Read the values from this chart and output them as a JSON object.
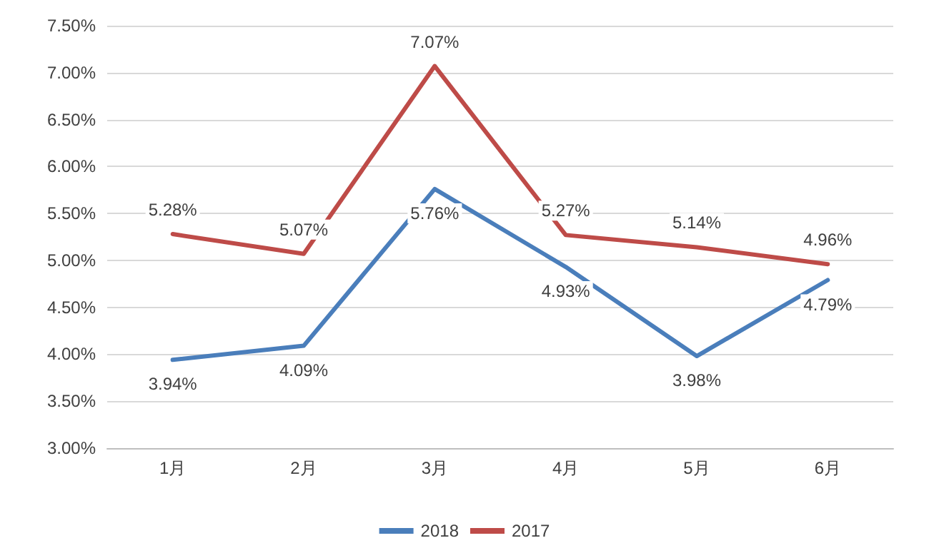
{
  "chart_data": {
    "type": "line",
    "categories": [
      "1月",
      "2月",
      "3月",
      "4月",
      "5月",
      "6月"
    ],
    "series": [
      {
        "name": "2018",
        "color": "#4a7ebb",
        "values": [
          3.94,
          4.09,
          5.76,
          4.93,
          3.98,
          4.79
        ],
        "value_labels": [
          "3.94%",
          "4.09%",
          "5.76%",
          "4.93%",
          "3.98%",
          "4.79%"
        ]
      },
      {
        "name": "2017",
        "color": "#be4b48",
        "values": [
          5.28,
          5.07,
          7.07,
          5.27,
          5.14,
          4.96
        ],
        "value_labels": [
          "5.28%",
          "5.07%",
          "7.07%",
          "5.27%",
          "5.14%",
          "4.96%"
        ]
      }
    ],
    "ylim": [
      3,
      7.5
    ],
    "yticks": [
      {
        "value": 3,
        "label": "3.00%"
      },
      {
        "value": 3.5,
        "label": "3.50%"
      },
      {
        "value": 4,
        "label": "4.00%"
      },
      {
        "value": 4.5,
        "label": "4.50%"
      },
      {
        "value": 5,
        "label": "5.00%"
      },
      {
        "value": 5.5,
        "label": "5.50%"
      },
      {
        "value": 6,
        "label": "6.00%"
      },
      {
        "value": 6.5,
        "label": "6.50%"
      },
      {
        "value": 7,
        "label": "7.00%"
      },
      {
        "value": 7.5,
        "label": "7.50%"
      }
    ],
    "grid": "y",
    "legend": "bottom",
    "marker": "none",
    "line_style": "solid"
  }
}
